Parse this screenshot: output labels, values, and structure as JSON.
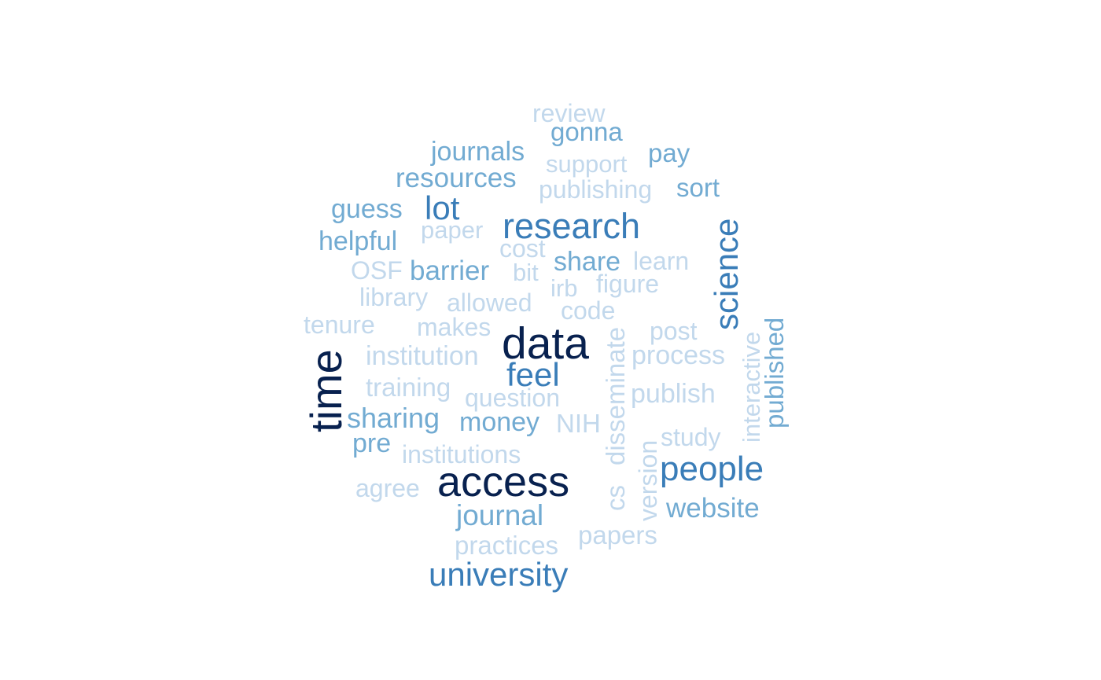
{
  "palette": {
    "tier1": "#08214f",
    "tier2": "#3a7db8",
    "tier3": "#72abd2",
    "tier4": "#c2d8ec"
  },
  "words": [
    {
      "key": "review",
      "text": "review",
      "tier": 4,
      "vertical": false
    },
    {
      "key": "gonna",
      "text": "gonna",
      "tier": 3,
      "vertical": false
    },
    {
      "key": "journals",
      "text": "journals",
      "tier": 3,
      "vertical": false
    },
    {
      "key": "pay",
      "text": "pay",
      "tier": 3,
      "vertical": false
    },
    {
      "key": "support",
      "text": "support",
      "tier": 4,
      "vertical": false
    },
    {
      "key": "resources",
      "text": "resources",
      "tier": 3,
      "vertical": false
    },
    {
      "key": "publishing",
      "text": "publishing",
      "tier": 4,
      "vertical": false
    },
    {
      "key": "sort",
      "text": "sort",
      "tier": 3,
      "vertical": false
    },
    {
      "key": "guess",
      "text": "guess",
      "tier": 3,
      "vertical": false
    },
    {
      "key": "lot",
      "text": "lot",
      "tier": 2,
      "vertical": false
    },
    {
      "key": "research",
      "text": "research",
      "tier": 2,
      "vertical": false
    },
    {
      "key": "paper",
      "text": "paper",
      "tier": 4,
      "vertical": false
    },
    {
      "key": "helpful",
      "text": "helpful",
      "tier": 3,
      "vertical": false
    },
    {
      "key": "cost",
      "text": "cost",
      "tier": 4,
      "vertical": false
    },
    {
      "key": "share",
      "text": "share",
      "tier": 3,
      "vertical": false
    },
    {
      "key": "learn",
      "text": "learn",
      "tier": 4,
      "vertical": false
    },
    {
      "key": "osf",
      "text": "OSF",
      "tier": 4,
      "vertical": false
    },
    {
      "key": "barrier",
      "text": "barrier",
      "tier": 3,
      "vertical": false
    },
    {
      "key": "bit",
      "text": "bit",
      "tier": 4,
      "vertical": false
    },
    {
      "key": "irb",
      "text": "irb",
      "tier": 4,
      "vertical": false
    },
    {
      "key": "figure",
      "text": "figure",
      "tier": 4,
      "vertical": false
    },
    {
      "key": "library",
      "text": "library",
      "tier": 4,
      "vertical": false
    },
    {
      "key": "allowed",
      "text": "allowed",
      "tier": 4,
      "vertical": false
    },
    {
      "key": "code",
      "text": "code",
      "tier": 4,
      "vertical": false
    },
    {
      "key": "tenure",
      "text": "tenure",
      "tier": 4,
      "vertical": false
    },
    {
      "key": "makes",
      "text": "makes",
      "tier": 4,
      "vertical": false
    },
    {
      "key": "post",
      "text": "post",
      "tier": 4,
      "vertical": false
    },
    {
      "key": "data",
      "text": "data",
      "tier": 1,
      "vertical": false
    },
    {
      "key": "institution",
      "text": "institution",
      "tier": 4,
      "vertical": false
    },
    {
      "key": "process",
      "text": "process",
      "tier": 4,
      "vertical": false
    },
    {
      "key": "feel",
      "text": "feel",
      "tier": 2,
      "vertical": false
    },
    {
      "key": "training",
      "text": "training",
      "tier": 4,
      "vertical": false
    },
    {
      "key": "question",
      "text": "question",
      "tier": 4,
      "vertical": false
    },
    {
      "key": "publish",
      "text": "publish",
      "tier": 4,
      "vertical": false
    },
    {
      "key": "sharing",
      "text": "sharing",
      "tier": 3,
      "vertical": false
    },
    {
      "key": "money",
      "text": "money",
      "tier": 3,
      "vertical": false
    },
    {
      "key": "nih",
      "text": "NIH",
      "tier": 4,
      "vertical": false
    },
    {
      "key": "pre",
      "text": "pre",
      "tier": 3,
      "vertical": false
    },
    {
      "key": "study",
      "text": "study",
      "tier": 4,
      "vertical": false
    },
    {
      "key": "institutions",
      "text": "institutions",
      "tier": 4,
      "vertical": false
    },
    {
      "key": "people",
      "text": "people",
      "tier": 2,
      "vertical": false
    },
    {
      "key": "access",
      "text": "access",
      "tier": 1,
      "vertical": false
    },
    {
      "key": "agree",
      "text": "agree",
      "tier": 4,
      "vertical": false
    },
    {
      "key": "website",
      "text": "website",
      "tier": 3,
      "vertical": false
    },
    {
      "key": "journal",
      "text": "journal",
      "tier": 3,
      "vertical": false
    },
    {
      "key": "papers",
      "text": "papers",
      "tier": 4,
      "vertical": false
    },
    {
      "key": "practices",
      "text": "practices",
      "tier": 4,
      "vertical": false
    },
    {
      "key": "university",
      "text": "university",
      "tier": 2,
      "vertical": false
    },
    {
      "key": "time",
      "text": "time",
      "tier": 1,
      "vertical": true
    },
    {
      "key": "science",
      "text": "science",
      "tier": 2,
      "vertical": true
    },
    {
      "key": "disseminate",
      "text": "disseminate",
      "tier": 4,
      "vertical": true
    },
    {
      "key": "cs",
      "text": "cs",
      "tier": 4,
      "vertical": true
    },
    {
      "key": "version",
      "text": "version",
      "tier": 4,
      "vertical": true
    },
    {
      "key": "interactive",
      "text": "interactive",
      "tier": 4,
      "vertical": true
    },
    {
      "key": "published",
      "text": "published",
      "tier": 3,
      "vertical": true
    }
  ]
}
